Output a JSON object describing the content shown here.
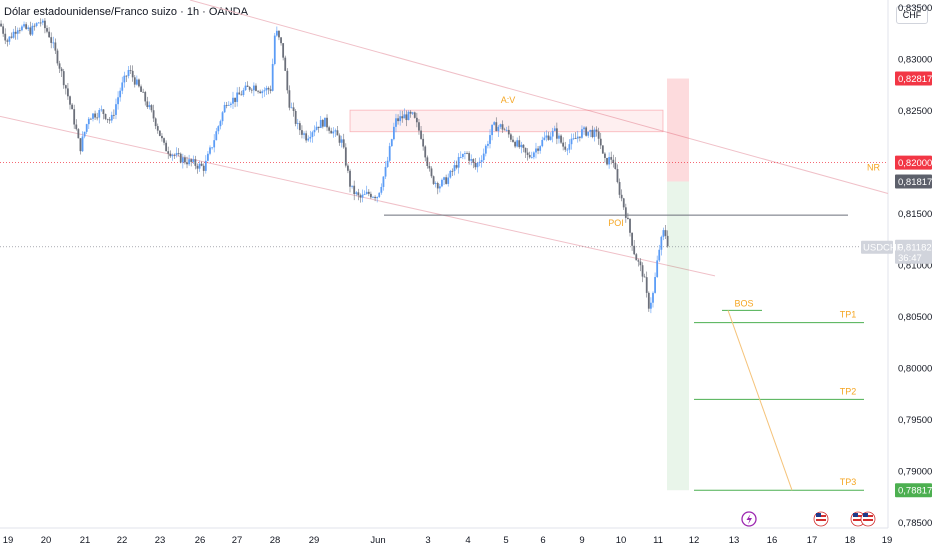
{
  "header": {
    "title": "Dólar estadounidense/Franco suizo · 1h · OANDA",
    "currency": "CHF"
  },
  "colors": {
    "up": "#5b9cf6",
    "down": "#6b6f7a",
    "red_badge": "#f23645",
    "gray_badge": "#5d606b",
    "green_line": "#4caf50",
    "orange_text": "#f5a623",
    "pink_trend": "#f0c0c8"
  },
  "chart_data": {
    "type": "candlestick",
    "symbol": "USDCHF",
    "timeframe": "1h",
    "broker": "OANDA",
    "y_ticks": [
      "0,78500",
      "0,79000",
      "0,79500",
      "0,80000",
      "0,80500",
      "0,81000",
      "0,81500",
      "0,82000",
      "0,82500",
      "0,83000",
      "0,83500"
    ],
    "x_ticks": [
      "19",
      "20",
      "21",
      "22",
      "23",
      "26",
      "27",
      "28",
      "29",
      "Jun",
      "3",
      "4",
      "5",
      "6",
      "9",
      "10",
      "11",
      "12",
      "13",
      "16",
      "17",
      "18",
      "19"
    ],
    "ylim": [
      0.7845,
      0.8358
    ],
    "close_path": [
      [
        0,
        0.8335
      ],
      [
        0.008,
        0.8318
      ],
      [
        0.02,
        0.8332
      ],
      [
        0.035,
        0.8328
      ],
      [
        0.045,
        0.8338
      ],
      [
        0.055,
        0.8325
      ],
      [
        0.065,
        0.83
      ],
      [
        0.075,
        0.827
      ],
      [
        0.085,
        0.8235
      ],
      [
        0.09,
        0.8213
      ],
      [
        0.1,
        0.8245
      ],
      [
        0.115,
        0.825
      ],
      [
        0.125,
        0.824
      ],
      [
        0.135,
        0.827
      ],
      [
        0.145,
        0.829
      ],
      [
        0.155,
        0.8275
      ],
      [
        0.165,
        0.8258
      ],
      [
        0.175,
        0.824
      ],
      [
        0.185,
        0.8215
      ],
      [
        0.2,
        0.8205
      ],
      [
        0.215,
        0.82
      ],
      [
        0.23,
        0.8195
      ],
      [
        0.24,
        0.822
      ],
      [
        0.255,
        0.826
      ],
      [
        0.265,
        0.8262
      ],
      [
        0.275,
        0.827
      ],
      [
        0.285,
        0.8275
      ],
      [
        0.295,
        0.827
      ],
      [
        0.305,
        0.8272
      ],
      [
        0.31,
        0.833
      ],
      [
        0.318,
        0.831
      ],
      [
        0.325,
        0.826
      ],
      [
        0.335,
        0.8235
      ],
      [
        0.345,
        0.8225
      ],
      [
        0.355,
        0.8235
      ],
      [
        0.365,
        0.824
      ],
      [
        0.375,
        0.823
      ],
      [
        0.385,
        0.822
      ],
      [
        0.395,
        0.8175
      ],
      [
        0.405,
        0.8165
      ],
      [
        0.415,
        0.817
      ],
      [
        0.425,
        0.8168
      ],
      [
        0.435,
        0.8195
      ],
      [
        0.445,
        0.824
      ],
      [
        0.455,
        0.8245
      ],
      [
        0.465,
        0.8245
      ],
      [
        0.475,
        0.8225
      ],
      [
        0.485,
        0.8185
      ],
      [
        0.495,
        0.8178
      ],
      [
        0.505,
        0.8185
      ],
      [
        0.515,
        0.82
      ],
      [
        0.525,
        0.821
      ],
      [
        0.535,
        0.8195
      ],
      [
        0.545,
        0.821
      ],
      [
        0.555,
        0.8235
      ],
      [
        0.565,
        0.8235
      ],
      [
        0.575,
        0.8225
      ],
      [
        0.585,
        0.8215
      ],
      [
        0.595,
        0.8205
      ],
      [
        0.605,
        0.8215
      ],
      [
        0.615,
        0.8225
      ],
      [
        0.625,
        0.823
      ],
      [
        0.635,
        0.8215
      ],
      [
        0.645,
        0.822
      ],
      [
        0.655,
        0.823
      ],
      [
        0.665,
        0.823
      ],
      [
        0.675,
        0.8225
      ],
      [
        0.68,
        0.82
      ],
      [
        0.69,
        0.8205
      ],
      [
        0.695,
        0.818
      ],
      [
        0.705,
        0.815
      ],
      [
        0.715,
        0.811
      ],
      [
        0.725,
        0.809
      ],
      [
        0.73,
        0.806
      ],
      [
        0.735,
        0.807
      ],
      [
        0.742,
        0.8115
      ],
      [
        0.748,
        0.8135
      ],
      [
        0.753,
        0.8118
      ]
    ],
    "annotations": {
      "av_label": "A:V",
      "poi_label": "POI",
      "bos_label": "BOS",
      "nr_label": "NR",
      "tp1_label": "TP1",
      "tp2_label": "TP2",
      "tp3_label": "TP3"
    },
    "price_badges": {
      "upper_stop": "0,82817",
      "nr": "0,82000",
      "entry": "0,81817",
      "current": "0,81182",
      "countdown": "36:47",
      "tp3": "0,78817",
      "symbol": "USDCHF"
    },
    "levels": {
      "upper_stop": 0.82817,
      "nr": 0.82,
      "entry": 0.81817,
      "poi": 0.8149,
      "current": 0.81182,
      "bos": 0.80565,
      "tp1": 0.80445,
      "tp2": 0.797,
      "tp3": 0.78817
    }
  }
}
